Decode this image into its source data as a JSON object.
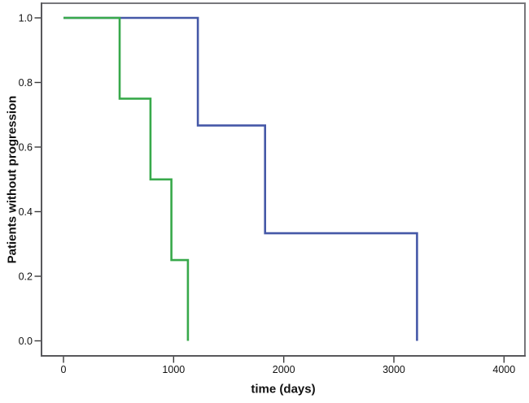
{
  "chart_data": {
    "type": "line",
    "subtype": "kaplan-meier-step",
    "title": "",
    "xlabel": "time (days)",
    "ylabel": "Patients without progression",
    "xlim": [
      -210,
      4230
    ],
    "ylim": [
      -0.05,
      1.09
    ],
    "x_ticks": [
      0,
      1000,
      2000,
      3000,
      4000
    ],
    "x_tick_labels": [
      "0",
      "1000",
      "2000",
      "3000",
      "4000"
    ],
    "y_ticks": [
      0.0,
      0.2,
      0.4,
      0.6,
      0.8,
      1.0
    ],
    "y_tick_labels": [
      "0.0",
      "0.2",
      "0.4",
      "0.6",
      "0.8",
      "1.0"
    ],
    "grid": false,
    "legend": null,
    "frame_color": "#77777b",
    "axis_color": "#58585c",
    "tick_color": "#3a3a3a",
    "series": [
      {
        "name": "group-blue",
        "color": "#4558a7",
        "description": "blue step curve, n=3 events",
        "step_points": [
          {
            "t": 0,
            "s": 1.0
          },
          {
            "t": 1220,
            "s": 0.667
          },
          {
            "t": 1830,
            "s": 0.333
          },
          {
            "t": 3210,
            "s": 0.0
          }
        ]
      },
      {
        "name": "group-green",
        "color": "#38a94b",
        "description": "green step curve, n=4 events",
        "step_points": [
          {
            "t": 0,
            "s": 1.0
          },
          {
            "t": 510,
            "s": 0.75
          },
          {
            "t": 790,
            "s": 0.5
          },
          {
            "t": 980,
            "s": 0.25
          },
          {
            "t": 1130,
            "s": 0.0
          }
        ]
      }
    ]
  }
}
